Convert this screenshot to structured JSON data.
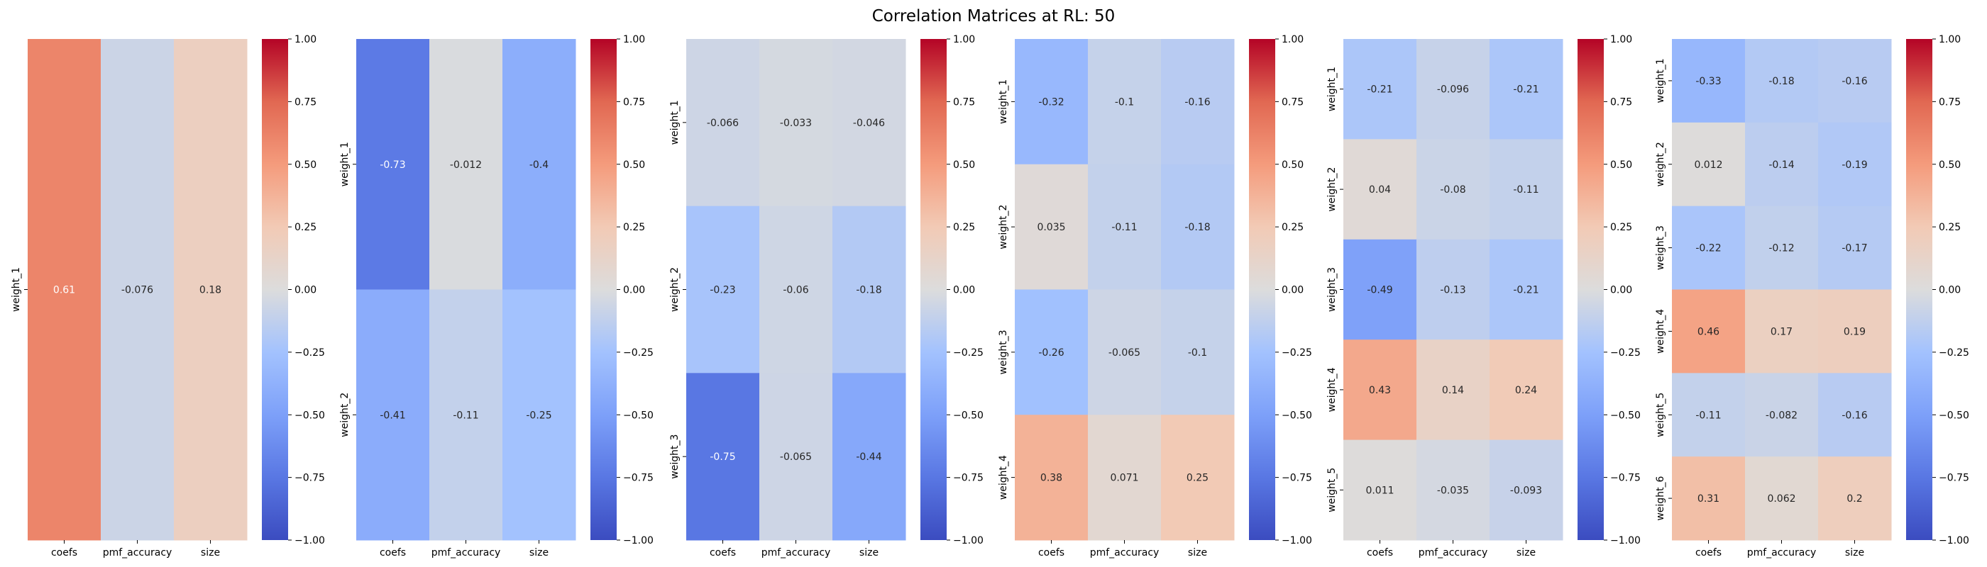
{
  "figure": {
    "title": "Correlation Matrices at RL: 50"
  },
  "colorbar": {
    "ticks": [
      1.0,
      0.75,
      0.5,
      0.25,
      0.0,
      -0.25,
      -0.5,
      -0.75,
      -1.0
    ],
    "tick_labels": [
      "1.00",
      "0.75",
      "0.50",
      "0.25",
      "0.00",
      "−0.25",
      "−0.50",
      "−0.75",
      "−1.00"
    ],
    "vmin": -1.0,
    "vmax": 1.0,
    "colormap": "coolwarm",
    "colors": [
      "#3b4cc0",
      "#dddddd",
      "#b40426"
    ]
  },
  "chart_data": [
    {
      "type": "heatmap",
      "columns": [
        "coefs",
        "pmf_accuracy",
        "size"
      ],
      "rows": [
        "weight_1"
      ],
      "values": [
        [
          0.61,
          -0.076,
          0.18
        ]
      ],
      "labels": [
        [
          "0.61",
          "-0.076",
          "0.18"
        ]
      ]
    },
    {
      "type": "heatmap",
      "columns": [
        "coefs",
        "pmf_accuracy",
        "size"
      ],
      "rows": [
        "weight_1",
        "weight_2"
      ],
      "values": [
        [
          -0.73,
          -0.012,
          -0.4
        ],
        [
          -0.41,
          -0.11,
          -0.25
        ]
      ],
      "labels": [
        [
          "-0.73",
          "-0.012",
          "-0.4"
        ],
        [
          "-0.41",
          "-0.11",
          "-0.25"
        ]
      ]
    },
    {
      "type": "heatmap",
      "columns": [
        "coefs",
        "pmf_accuracy",
        "size"
      ],
      "rows": [
        "weight_1",
        "weight_2",
        "weight_3"
      ],
      "values": [
        [
          -0.066,
          -0.033,
          -0.046
        ],
        [
          -0.23,
          -0.06,
          -0.18
        ],
        [
          -0.75,
          -0.065,
          -0.44
        ]
      ],
      "labels": [
        [
          "-0.066",
          "-0.033",
          "-0.046"
        ],
        [
          "-0.23",
          "-0.06",
          "-0.18"
        ],
        [
          "-0.75",
          "-0.065",
          "-0.44"
        ]
      ]
    },
    {
      "type": "heatmap",
      "columns": [
        "coefs",
        "pmf_accuracy",
        "size"
      ],
      "rows": [
        "weight_1",
        "weight_2",
        "weight_3",
        "weight_4"
      ],
      "values": [
        [
          -0.32,
          -0.1,
          -0.16
        ],
        [
          0.035,
          -0.11,
          -0.18
        ],
        [
          -0.26,
          -0.065,
          -0.1
        ],
        [
          0.38,
          0.071,
          0.25
        ]
      ],
      "labels": [
        [
          "-0.32",
          "-0.1",
          "-0.16"
        ],
        [
          "0.035",
          "-0.11",
          "-0.18"
        ],
        [
          "-0.26",
          "-0.065",
          "-0.1"
        ],
        [
          "0.38",
          "0.071",
          "0.25"
        ]
      ]
    },
    {
      "type": "heatmap",
      "columns": [
        "coefs",
        "pmf_accuracy",
        "size"
      ],
      "rows": [
        "weight_1",
        "weight_2",
        "weight_3",
        "weight_4",
        "weight_5"
      ],
      "values": [
        [
          -0.21,
          -0.096,
          -0.21
        ],
        [
          0.04,
          -0.08,
          -0.11
        ],
        [
          -0.49,
          -0.13,
          -0.21
        ],
        [
          0.43,
          0.14,
          0.24
        ],
        [
          0.011,
          -0.035,
          -0.093
        ]
      ],
      "labels": [
        [
          "-0.21",
          "-0.096",
          "-0.21"
        ],
        [
          "0.04",
          "-0.08",
          "-0.11"
        ],
        [
          "-0.49",
          "-0.13",
          "-0.21"
        ],
        [
          "0.43",
          "0.14",
          "0.24"
        ],
        [
          "0.011",
          "-0.035",
          "-0.093"
        ]
      ]
    },
    {
      "type": "heatmap",
      "columns": [
        "coefs",
        "pmf_accuracy",
        "size"
      ],
      "rows": [
        "weight_1",
        "weight_2",
        "weight_3",
        "weight_4",
        "weight_5",
        "weight_6"
      ],
      "values": [
        [
          -0.33,
          -0.18,
          -0.16
        ],
        [
          0.012,
          -0.14,
          -0.19
        ],
        [
          -0.22,
          -0.12,
          -0.17
        ],
        [
          0.46,
          0.17,
          0.19
        ],
        [
          -0.11,
          -0.082,
          -0.16
        ],
        [
          0.31,
          0.062,
          0.2
        ]
      ],
      "labels": [
        [
          "-0.33",
          "-0.18",
          "-0.16"
        ],
        [
          "0.012",
          "-0.14",
          "-0.19"
        ],
        [
          "-0.22",
          "-0.12",
          "-0.17"
        ],
        [
          "0.46",
          "0.17",
          "0.19"
        ],
        [
          "-0.11",
          "-0.082",
          "-0.16"
        ],
        [
          "0.31",
          "0.062",
          "0.2"
        ]
      ]
    }
  ]
}
